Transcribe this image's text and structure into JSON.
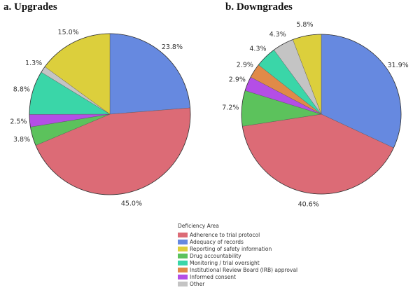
{
  "chart_data": [
    {
      "type": "pie",
      "title": "a.  Upgrades",
      "start": "top",
      "direction": "clockwise",
      "slices": [
        {
          "category": "Adequacy of records",
          "value": 23.8,
          "label": "23.8%"
        },
        {
          "category": "Adherence to trial protocol",
          "value": 45.0,
          "label": "45.0%"
        },
        {
          "category": "Drug accountability",
          "value": 3.8,
          "label": "3.8%"
        },
        {
          "category": "Informed consent",
          "value": 2.5,
          "label": "2.5%"
        },
        {
          "category": "Monitoring / trial oversight",
          "value": 8.8,
          "label": "8.8%"
        },
        {
          "category": "Other",
          "value": 1.3,
          "label": "1.3%"
        },
        {
          "category": "Reporting of safety information",
          "value": 15.0,
          "label": "15.0%"
        }
      ]
    },
    {
      "type": "pie",
      "title": "b.   Downgrades",
      "start": "top",
      "direction": "clockwise",
      "slices": [
        {
          "category": "Adequacy of records",
          "value": 31.9,
          "label": "31.9%"
        },
        {
          "category": "Adherence to trial protocol",
          "value": 40.6,
          "label": "40.6%"
        },
        {
          "category": "Drug accountability",
          "value": 7.2,
          "label": "7.2%"
        },
        {
          "category": "Informed consent",
          "value": 2.9,
          "label": "2.9%"
        },
        {
          "category": "Institutional Review Board (IRB) approval",
          "value": 2.9,
          "label": "2.9%"
        },
        {
          "category": "Monitoring / trial oversight",
          "value": 4.3,
          "label": "4.3%"
        },
        {
          "category": "Other",
          "value": 4.3,
          "label": "4.3%"
        },
        {
          "category": "Reporting of safety information",
          "value": 5.8,
          "label": "5.8%"
        }
      ]
    }
  ],
  "legend": {
    "title": "Deficiency Area",
    "placement": "bottom-center",
    "items": [
      {
        "label": "Adherence to trial protocol",
        "color": "#dc6b76"
      },
      {
        "label": "Adequacy of records",
        "color": "#6689e0"
      },
      {
        "label": "Reporting of safety information",
        "color": "#dccf3c"
      },
      {
        "label": "Drug accountability",
        "color": "#5cc25c"
      },
      {
        "label": "Monitoring / trial oversight",
        "color": "#3ad6a8"
      },
      {
        "label": "Institutional Review Board (IRB) approval",
        "color": "#e08a48"
      },
      {
        "label": "Informed consent",
        "color": "#b44ee6"
      },
      {
        "label": "Other",
        "color": "#c4c4c4"
      }
    ]
  }
}
